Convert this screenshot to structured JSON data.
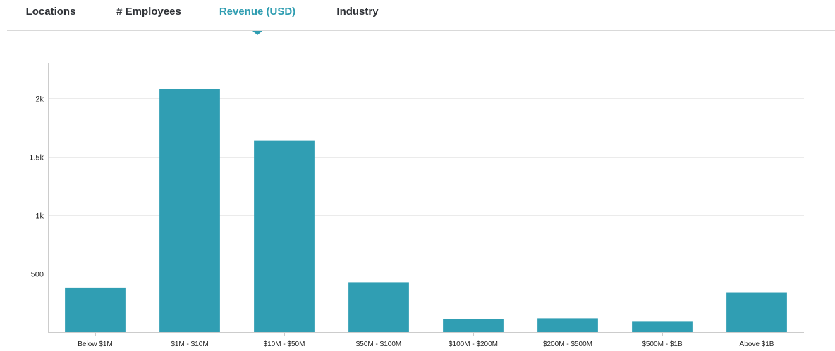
{
  "tabs": [
    {
      "label": "Locations",
      "active": false
    },
    {
      "label": "# Employees",
      "active": false
    },
    {
      "label": "Revenue (USD)",
      "active": true
    },
    {
      "label": "Industry",
      "active": false
    }
  ],
  "colors": {
    "accent": "#2f9db1",
    "bar": "#309eb3",
    "grid": "#ebebeb",
    "axis": "#cccccc",
    "tab_text": "#2f3237",
    "tick_text": "#222222"
  },
  "chart_data": {
    "type": "bar",
    "categories": [
      "Below $1M",
      "$1M - $10M",
      "$10M - $50M",
      "$50M - $100M",
      "$100M - $200M",
      "$200M - $500M",
      "$500M - $1B",
      "Above $1B"
    ],
    "values": [
      380,
      2080,
      1640,
      425,
      110,
      118,
      88,
      340
    ],
    "yticks": [
      500,
      1000,
      1500,
      2000
    ],
    "ytick_labels": [
      "500",
      "1k",
      "1.5k",
      "2k"
    ],
    "ylim": [
      0,
      2300
    ],
    "grid": true,
    "title": "",
    "xlabel": "",
    "ylabel": ""
  }
}
